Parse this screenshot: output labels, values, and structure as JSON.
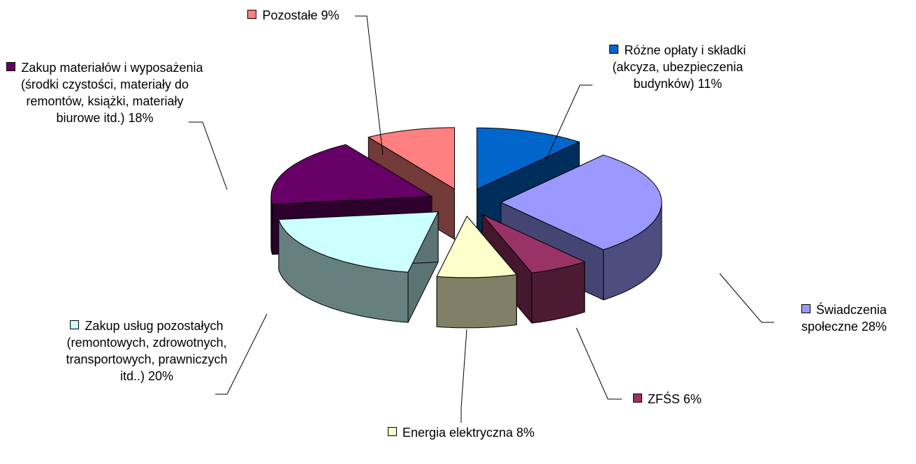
{
  "chart_data": {
    "type": "pie3d",
    "categories": [
      "Różne opłaty i składki (akcyza, ubezpieczenia budynków)",
      "Świadczenia społeczne",
      "ZFŚS",
      "Energia elektryczna",
      "Zakup usług pozostałych (remontowych, zdrowotnych, transportowych, prawniczych itd..)",
      "Zakup materiałów i wyposażenia (środki czystości, materiały do remontów, książki, materiały biurowe itd.)",
      "Pozostałe"
    ],
    "values": [
      11,
      28,
      6,
      8,
      20,
      18,
      9
    ],
    "value_labels": [
      "11%",
      "28%",
      "6%",
      "8%",
      "20%",
      "18%",
      "9%"
    ],
    "colors": [
      "#0066CC",
      "#9999FF",
      "#993366",
      "#FFFFCC",
      "#CCFFFF",
      "#660066",
      "#FF8080"
    ]
  }
}
